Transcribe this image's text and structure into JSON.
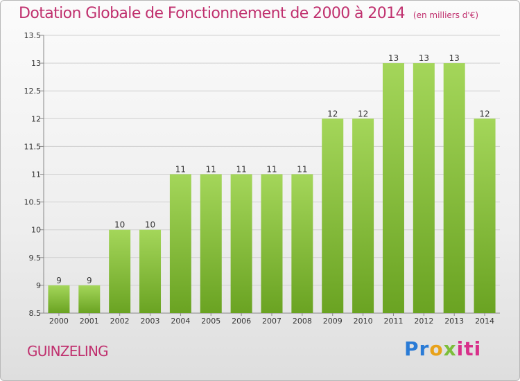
{
  "title": "Dotation Globale de Fonctionnement de 2000 à 2014",
  "unit_note": "(en milliers d'€)",
  "location": "GUINZELING",
  "logo": {
    "text": "Proxiti",
    "colors": [
      "#2a7bd6",
      "#e8a21a",
      "#7cbe3a",
      "#d8308a"
    ]
  },
  "colors": {
    "title": "#c0306e",
    "bar_light": "#a4d65a",
    "bar_dark": "#6aa322"
  },
  "chart_data": {
    "type": "bar",
    "categories": [
      "2000",
      "2001",
      "2002",
      "2003",
      "2004",
      "2005",
      "2006",
      "2007",
      "2008",
      "2009",
      "2010",
      "2011",
      "2012",
      "2013",
      "2014"
    ],
    "values": [
      9,
      9,
      10,
      10,
      11,
      11,
      11,
      11,
      11,
      12,
      12,
      13,
      13,
      13,
      12
    ],
    "ylim": [
      8.5,
      13.5
    ],
    "yticks": [
      "8.5",
      "9",
      "9.5",
      "10",
      "10.5",
      "11",
      "11.5",
      "12",
      "12.5",
      "13",
      "13.5"
    ],
    "grid": true
  }
}
